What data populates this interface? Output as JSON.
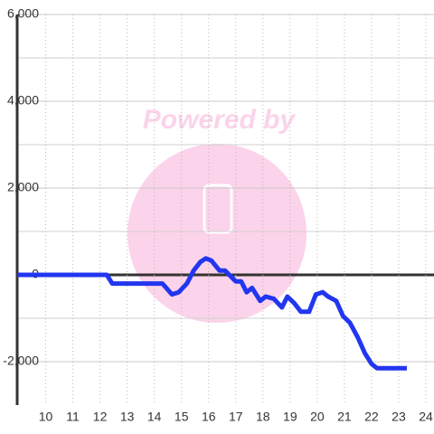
{
  "chart_data": {
    "type": "line",
    "watermark": "Powered by",
    "x": [
      8.95,
      12.25,
      12.45,
      14.3,
      14.65,
      14.9,
      15.2,
      15.45,
      15.7,
      15.9,
      16.1,
      16.4,
      16.6,
      17.0,
      17.2,
      17.4,
      17.6,
      17.9,
      18.1,
      18.4,
      18.7,
      18.9,
      19.15,
      19.4,
      19.7,
      19.95,
      20.2,
      20.4,
      20.7,
      20.95,
      21.2,
      21.5,
      21.75,
      22.0,
      22.2,
      23.3
    ],
    "series": [
      {
        "color": "#2236f0",
        "values": [
          0,
          0,
          -200,
          -200,
          -450,
          -400,
          -200,
          100,
          300,
          380,
          330,
          100,
          100,
          -150,
          -150,
          -400,
          -300,
          -600,
          -500,
          -550,
          -750,
          -500,
          -650,
          -850,
          -850,
          -450,
          -400,
          -500,
          -600,
          -950,
          -1100,
          -1450,
          -1800,
          -2050,
          -2150,
          -2150
        ]
      }
    ],
    "xlim": [
      8.95,
      24.3
    ],
    "ylim": [
      -3000,
      6000
    ],
    "xticks": [
      10,
      11,
      12,
      13,
      14,
      15,
      16,
      17,
      18,
      19,
      20,
      21,
      22,
      23,
      24
    ],
    "yticks": [
      {
        "value": 6000,
        "label": "6,000"
      },
      {
        "value": 4000,
        "label": "4,000"
      },
      {
        "value": 2000,
        "label": "2,000"
      },
      0,
      {
        "value": -2000,
        "label": "-2,000"
      }
    ],
    "yminor": [
      5000,
      3000,
      1000,
      -1000
    ],
    "grid": true
  }
}
